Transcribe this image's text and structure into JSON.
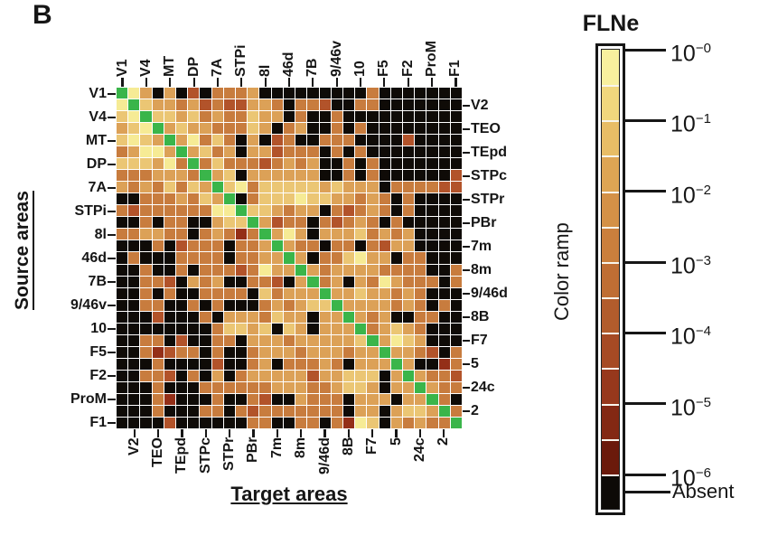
{
  "panel_label": "B",
  "axis_titles": {
    "source": "Source areas",
    "target": "Target areas"
  },
  "colorbar": {
    "title": "FLNe",
    "ramp_label": "Color ramp",
    "tick_base": "10",
    "tick_exponents": [
      "−0",
      "−1",
      "−2",
      "−3",
      "−4",
      "−5",
      "−6"
    ],
    "absent_label": "Absent",
    "segment_colors": [
      "#f8f09e",
      "#f1d77d",
      "#e8bd66",
      "#dea554",
      "#d49147",
      "#ca7f3d",
      "#bf6e34",
      "#b25c2c",
      "#a64a24",
      "#97381c",
      "#832813",
      "#6b1a0b"
    ],
    "absent_color": "#0d0a07"
  },
  "chart_data": {
    "type": "heatmap",
    "xlabel": "Target areas",
    "ylabel": "Source areas",
    "legend_title": "FLNe",
    "scale": "log10, from 10^0 (pale yellow) down to 10^-6 (dark maroon); black = absent connection; green = matrix diagonal (self area)",
    "areas": [
      "V1",
      "V2",
      "V4",
      "TEO",
      "MT",
      "TEpd",
      "DP",
      "STPc",
      "7A",
      "STPr",
      "STPi",
      "PBr",
      "8l",
      "7m",
      "46d",
      "8m",
      "7B",
      "9/46d",
      "9/46v",
      "8B",
      "10",
      "F7",
      "F5",
      "5",
      "F2",
      "24c",
      "ProM",
      "2",
      "F1"
    ],
    "row_label_layout": "odd rows labeled on left, even rows on right",
    "col_label_layout": "odd columns labeled on top, even columns on bottom",
    "levels": {
      ".": "absent (black)",
      "1": "~10^-6",
      "2": "~10^-5",
      "3": "~10^-4",
      "4": "~10^-3",
      "5": "~10^-2",
      "6": "~10^-1",
      "7": "~10^0",
      "G": "diagonal (green)"
    },
    "palette": {
      ".": "#0f0b07",
      "1": "#701c0d",
      "2": "#942f18",
      "3": "#b2532a",
      "4": "#c87c3e",
      "5": "#dca157",
      "6": "#ebc674",
      "7": "#f6eb95",
      "G": "#3ab54a"
    },
    "matrix": [
      "G75.5.3.4445.........4.......",
      "7G655453433554.443..44.......",
      "67G66564544655.4..4..........",
      "567G565544465.45..4.4........",
      "6765G57464.5.34..444....3....",
      "45775G5645.553444.4.4........",
      "666574G4644434545..4.4.......",
      "4445554G56.555555..4.4......3",
      "54546465G6746666656555.444433",
      "..4445465G.466676655454.4....",
      "4344444477G665455.43454.4....",
      "..4.44..566G5344.43454.4.....",
      "445544.45424G575.55564545....",
      "...4.3444.445G544.44.4355....",
      ".4...4444.4455G5.446755.44...",
      "..4..4.44434755G5455554444..4",
      "..443.545..443.5G45.5475444.4",
      "..4.4..4444.64555G55655454...",
      "..44..4.4...454566G5555454.4.",
      "...3...4.5554655.55G545..44..",
      "........46656.65.555G45654...",
      "..44.3..44.5554555556G5765...",
      "..42344.4..45554555455G5543.4",
      "...4....3..45.44454.555G5..24",
      "..443.4.5.455555355666.5G5443",
      "...4...444444555445665.55G544",
      "...42...4..43..5444.555.55G4.",
      "...4...44.434444444.55.5665G4",
      "....3......44..44.4276.54544G"
    ]
  }
}
